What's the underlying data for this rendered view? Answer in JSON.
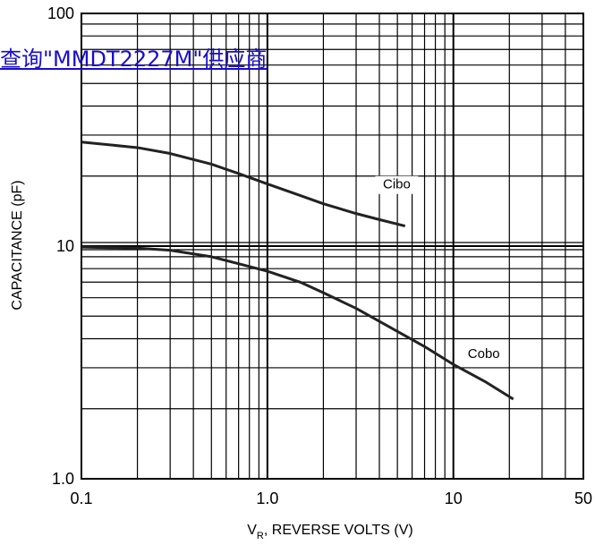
{
  "link": {
    "text": "查询\"MMDT2227M\"供应商"
  },
  "chart_data": {
    "type": "line",
    "xscale": "log",
    "yscale": "log",
    "xlim": [
      0.1,
      50
    ],
    "ylim": [
      1,
      100
    ],
    "xlabel_main": "V",
    "xlabel_sub": "R",
    "xlabel_rest": ", REVERSE VOLTS (V)",
    "ylabel": "CAPACITANCE (pF)",
    "x_ticks": [
      {
        "value": 0.1,
        "label": "0.1"
      },
      {
        "value": 1,
        "label": "1.0"
      },
      {
        "value": 10,
        "label": "10"
      },
      {
        "value": 50,
        "label": "50"
      }
    ],
    "y_ticks": [
      {
        "value": 1,
        "label": "1.0"
      },
      {
        "value": 10,
        "label": "10"
      },
      {
        "value": 100,
        "label": "100"
      }
    ],
    "grid": true,
    "series": [
      {
        "name": "Cibo",
        "x": [
          0.1,
          0.2,
          0.3,
          0.5,
          0.7,
          1.0,
          1.5,
          2.0,
          3.0,
          4.0,
          5.5
        ],
        "values": [
          28,
          26.5,
          25,
          22.5,
          20.5,
          18.5,
          16.5,
          15.2,
          13.8,
          13.0,
          12.2
        ]
      },
      {
        "name": "Cobo",
        "x": [
          0.1,
          0.2,
          0.3,
          0.5,
          0.7,
          1.0,
          1.5,
          2.0,
          3.0,
          5.0,
          7.0,
          10,
          15,
          21
        ],
        "values": [
          9.9,
          9.8,
          9.6,
          9.0,
          8.4,
          7.8,
          7.0,
          6.3,
          5.4,
          4.3,
          3.7,
          3.1,
          2.6,
          2.2
        ]
      }
    ]
  }
}
